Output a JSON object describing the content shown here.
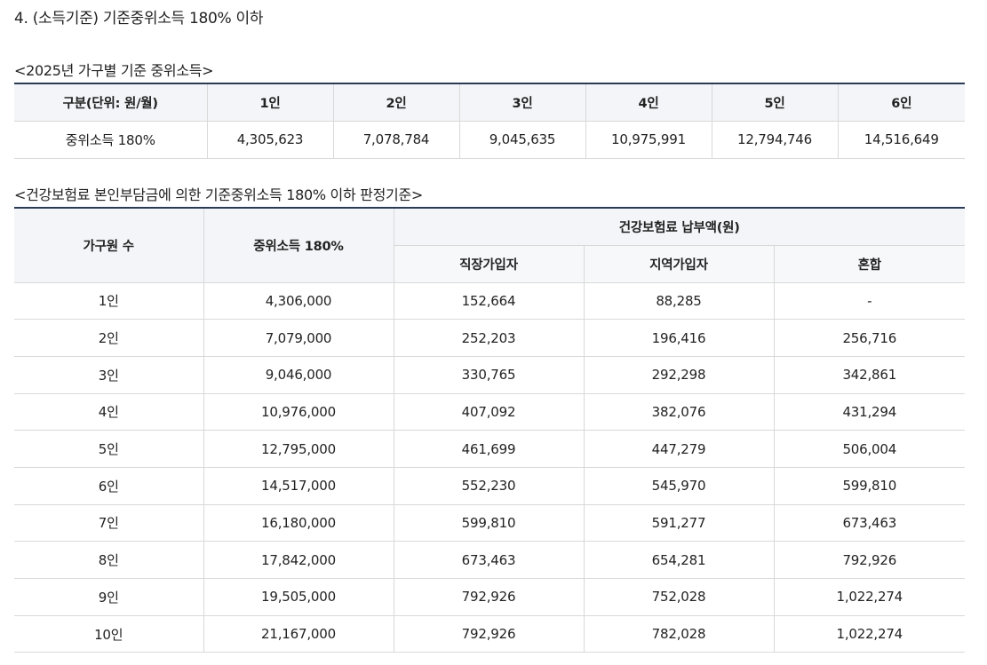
{
  "section_title": "4. (소득기준) 기준중위소득 180% 이하",
  "median_table": {
    "caption": "<2025년 가구별 기준 중위소득>",
    "header": [
      "구분(단위: 원/월)",
      "1인",
      "2인",
      "3인",
      "4인",
      "5인",
      "6인"
    ],
    "row": [
      "중위소득 180%",
      "4,305,623",
      "7,078,784",
      "9,045,635",
      "10,975,991",
      "12,794,746",
      "14,516,649"
    ]
  },
  "premium_table": {
    "caption": "<건강보험료 본인부담금에 의한 기준중위소득 180% 이하 판정기준>",
    "header_household": "가구원 수",
    "header_income": "중위소득 180%",
    "header_premium": "건강보험료 납부액(원)",
    "header_sub": [
      "직장가입자",
      "지역가입자",
      "혼합"
    ],
    "rows": [
      [
        "1인",
        "4,306,000",
        "152,664",
        "88,285",
        "-"
      ],
      [
        "2인",
        "7,079,000",
        "252,203",
        "196,416",
        "256,716"
      ],
      [
        "3인",
        "9,046,000",
        "330,765",
        "292,298",
        "342,861"
      ],
      [
        "4인",
        "10,976,000",
        "407,092",
        "382,076",
        "431,294"
      ],
      [
        "5인",
        "12,795,000",
        "461,699",
        "447,279",
        "506,004"
      ],
      [
        "6인",
        "14,517,000",
        "552,230",
        "545,970",
        "599,810"
      ],
      [
        "7인",
        "16,180,000",
        "599,810",
        "591,277",
        "673,463"
      ],
      [
        "8인",
        "17,842,000",
        "673,463",
        "654,281",
        "792,926"
      ],
      [
        "9인",
        "19,505,000",
        "792,926",
        "752,028",
        "1,022,274"
      ],
      [
        "10인",
        "21,167,000",
        "792,926",
        "782,028",
        "1,022,274"
      ]
    ]
  }
}
